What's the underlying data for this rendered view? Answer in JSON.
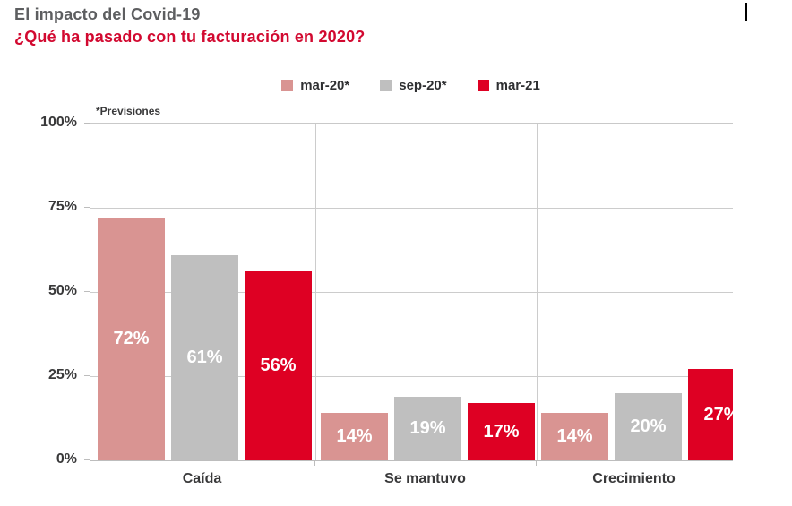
{
  "header": {
    "title": "El impacto del Covid-19",
    "subtitle": "¿Qué ha pasado con tu facturación en 2020?"
  },
  "chart_data": {
    "type": "bar",
    "title": "El impacto del Covid-19",
    "subtitle": "¿Qué ha pasado con tu facturación en 2020?",
    "note": "*Previsiones",
    "categories": [
      "Caída",
      "Se mantuvo",
      "Crecimiento"
    ],
    "series": [
      {
        "name": "mar-20*",
        "color": "#d99492",
        "values": [
          72,
          14,
          14
        ]
      },
      {
        "name": "sep-20*",
        "color": "#bfbfbf",
        "values": [
          61,
          19,
          20
        ]
      },
      {
        "name": "mar-21",
        "color": "#de0023",
        "values": [
          56,
          17,
          27
        ]
      }
    ],
    "xlabel": "",
    "ylabel": "",
    "ylim": [
      0,
      100
    ],
    "yticks": [
      0,
      25,
      50,
      75,
      100
    ],
    "ytick_suffix": "%",
    "value_suffix": "%",
    "grid": true,
    "legend_position": "top-center"
  },
  "colors": {
    "title": "#5d5e60",
    "subtitle": "#d20930",
    "text": "#39393a",
    "grid": "#cccccc",
    "axis": "#bdbdbd",
    "value_label": "#ffffff",
    "bar_pink": "#d99492",
    "bar_gray": "#bfbfbf",
    "bar_red": "#de0023"
  }
}
